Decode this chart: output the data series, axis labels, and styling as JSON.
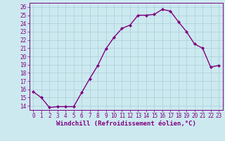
{
  "x": [
    0,
    1,
    2,
    3,
    4,
    5,
    6,
    7,
    8,
    9,
    10,
    11,
    12,
    13,
    14,
    15,
    16,
    17,
    18,
    19,
    20,
    21,
    22,
    23
  ],
  "y": [
    15.7,
    15.0,
    13.8,
    13.9,
    13.9,
    13.9,
    15.6,
    17.3,
    18.9,
    20.9,
    22.3,
    23.4,
    23.8,
    25.0,
    25.0,
    25.1,
    25.7,
    25.5,
    24.2,
    23.0,
    21.5,
    21.0,
    18.7,
    18.9
  ],
  "line_color": "#800080",
  "marker": "D",
  "marker_size": 2,
  "linewidth": 1.0,
  "bg_color": "#cce9f0",
  "grid_color": "#aacfd8",
  "xlabel": "Windchill (Refroidissement éolien,°C)",
  "xlim": [
    -0.5,
    23.5
  ],
  "ylim": [
    13.5,
    26.5
  ],
  "yticks": [
    14,
    15,
    16,
    17,
    18,
    19,
    20,
    21,
    22,
    23,
    24,
    25,
    26
  ],
  "xticks": [
    0,
    1,
    2,
    3,
    4,
    5,
    6,
    7,
    8,
    9,
    10,
    11,
    12,
    13,
    14,
    15,
    16,
    17,
    18,
    19,
    20,
    21,
    22,
    23
  ],
  "tick_fontsize": 5.5,
  "xlabel_fontsize": 6.5
}
